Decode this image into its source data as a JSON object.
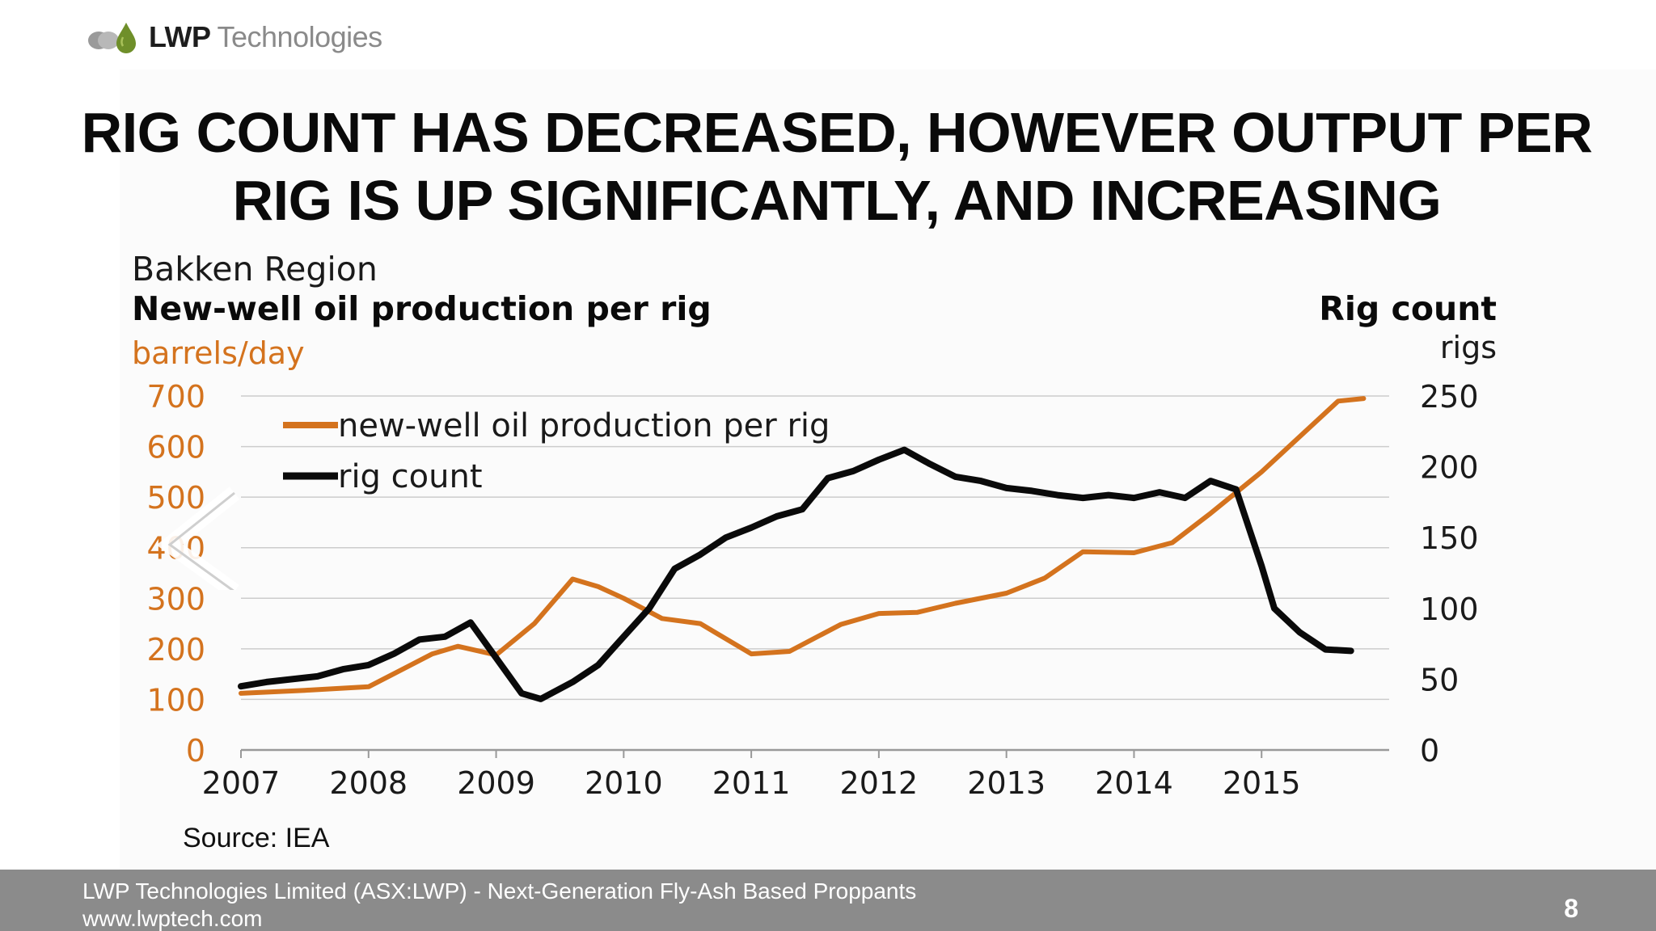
{
  "logo": {
    "brand_bold": "LWP",
    "brand_light": "Technologies"
  },
  "slide": {
    "title_line1": "RIG COUNT HAS DECREASED, HOWEVER OUTPUT PER",
    "title_line2": "RIG IS UP SIGNIFICANTLY, AND INCREASING",
    "source": "Source: IEA",
    "page_number": "8"
  },
  "footer": {
    "line1": "LWP Technologies Limited (ASX:LWP) -   Next-Generation Fly-Ash Based Proppants",
    "line2": "www.lwptech.com"
  },
  "colors": {
    "orange": "#d4731e",
    "black": "#0a0a0a",
    "grid": "#cccccc",
    "footer_bg": "#8b8b8b"
  },
  "chart_data": {
    "type": "line",
    "region_label": "Bakken Region",
    "title": "New-well oil production per rig",
    "left_unit": "barrels/day",
    "right_title": "Rig count",
    "right_unit": "rigs",
    "x_ticks": [
      "2007",
      "2008",
      "2009",
      "2010",
      "2011",
      "2012",
      "2013",
      "2014",
      "2015"
    ],
    "y_left_ticks": [
      "0",
      "100",
      "200",
      "300",
      "400",
      "500",
      "600",
      "700"
    ],
    "y_right_ticks": [
      "0",
      "50",
      "100",
      "150",
      "200",
      "250"
    ],
    "xlim": [
      2007,
      2016
    ],
    "ylim_left": [
      0,
      700
    ],
    "ylim_right": [
      0,
      250
    ],
    "grid": true,
    "legend_position": "top-left",
    "series": [
      {
        "name": "new-well oil production per rig",
        "axis": "left",
        "color": "#d4731e",
        "x": [
          2007.0,
          2007.5,
          2008.0,
          2008.5,
          2008.7,
          2009.0,
          2009.3,
          2009.6,
          2009.8,
          2010.0,
          2010.3,
          2010.6,
          2011.0,
          2011.3,
          2011.7,
          2012.0,
          2012.3,
          2012.6,
          2013.0,
          2013.3,
          2013.6,
          2014.0,
          2014.3,
          2014.6,
          2015.0,
          2015.3,
          2015.6,
          2015.8
        ],
        "y": [
          112,
          118,
          125,
          190,
          205,
          188,
          250,
          338,
          323,
          300,
          260,
          250,
          190,
          195,
          248,
          270,
          272,
          290,
          310,
          340,
          392,
          390,
          410,
          468,
          550,
          620,
          690,
          695
        ]
      },
      {
        "name": "rig count",
        "axis": "right",
        "color": "#0a0a0a",
        "x": [
          2007.0,
          2007.2,
          2007.4,
          2007.6,
          2007.8,
          2008.0,
          2008.2,
          2008.4,
          2008.6,
          2008.8,
          2009.0,
          2009.2,
          2009.35,
          2009.6,
          2009.8,
          2010.0,
          2010.2,
          2010.4,
          2010.6,
          2010.8,
          2011.0,
          2011.2,
          2011.4,
          2011.6,
          2011.8,
          2012.0,
          2012.2,
          2012.4,
          2012.6,
          2012.8,
          2013.0,
          2013.2,
          2013.4,
          2013.6,
          2013.8,
          2014.0,
          2014.2,
          2014.4,
          2014.6,
          2014.8,
          2015.0,
          2015.1,
          2015.3,
          2015.5,
          2015.7
        ],
        "y": [
          45,
          48,
          50,
          52,
          57,
          60,
          68,
          78,
          80,
          90,
          65,
          40,
          36,
          48,
          60,
          80,
          100,
          128,
          138,
          150,
          157,
          165,
          170,
          192,
          197,
          205,
          212,
          202,
          193,
          190,
          185,
          183,
          180,
          178,
          180,
          178,
          182,
          178,
          190,
          184,
          130,
          100,
          83,
          71,
          70
        ]
      }
    ]
  }
}
